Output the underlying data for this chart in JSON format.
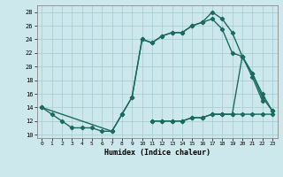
{
  "xlabel": "Humidex (Indice chaleur)",
  "x_values": [
    0,
    1,
    2,
    3,
    4,
    5,
    6,
    7,
    8,
    9,
    10,
    11,
    12,
    13,
    14,
    15,
    16,
    17,
    18,
    19,
    20,
    21,
    22,
    23
  ],
  "curve1_x": [
    0,
    1,
    2,
    3,
    4,
    5,
    6,
    7,
    8,
    9,
    10,
    11,
    12,
    13,
    14,
    15,
    16,
    17,
    18,
    19,
    20,
    21,
    22,
    23
  ],
  "curve1_y": [
    14,
    13,
    12,
    11,
    11,
    11,
    10.5,
    10.5,
    13,
    15.5,
    24,
    23.5,
    24.5,
    25,
    25,
    26,
    26.5,
    28,
    27,
    25,
    21.5,
    19,
    15.5,
    13.5
  ],
  "curve2_x": [
    0,
    7,
    8,
    9,
    10,
    11,
    12,
    13,
    14,
    15,
    16,
    17,
    18,
    19,
    20,
    21,
    22
  ],
  "curve2_y": [
    14,
    10.5,
    13,
    15.5,
    24,
    23.5,
    24.5,
    25,
    25,
    26,
    26.5,
    27,
    25.5,
    22,
    21.5,
    18.5,
    15
  ],
  "curve3_x": [
    11,
    12,
    13,
    14,
    15,
    16,
    17,
    18,
    19,
    20,
    21,
    22,
    23
  ],
  "curve3_y": [
    12,
    12,
    12,
    12,
    12.5,
    12.5,
    13,
    13,
    13,
    21.5,
    19,
    16,
    13.5
  ],
  "curve4_x": [
    11,
    12,
    13,
    14,
    15,
    16,
    17,
    18,
    19,
    20,
    21,
    22,
    23
  ],
  "curve4_y": [
    12,
    12,
    12,
    12,
    12.5,
    12.5,
    13,
    13,
    13,
    13,
    13,
    13,
    13
  ],
  "ylim": [
    9.5,
    29
  ],
  "yticks": [
    10,
    12,
    14,
    16,
    18,
    20,
    22,
    24,
    26,
    28
  ],
  "bg_color": "#cce8ed",
  "grid_color": "#aacfd6",
  "line_color": "#1a6b5e",
  "marker": "D",
  "marker_size": 2.2,
  "line_width": 1.0
}
